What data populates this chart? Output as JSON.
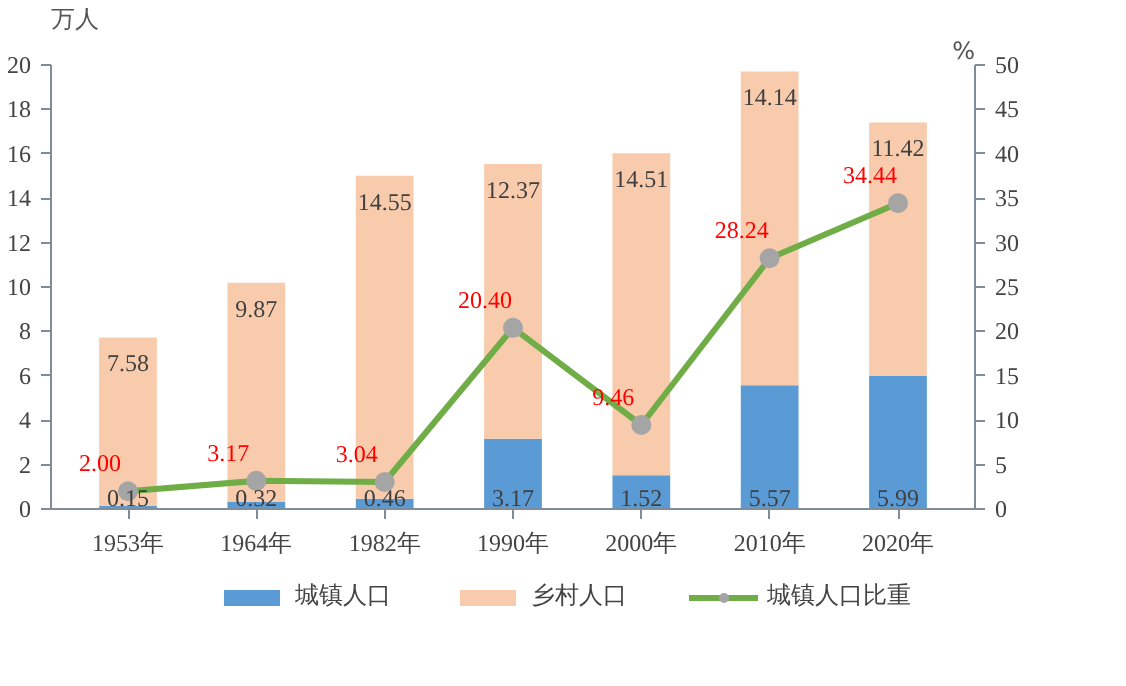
{
  "chart_data": {
    "type": "bar",
    "stacked": true,
    "ylabel": "万人",
    "y2label": "%",
    "categories": [
      "1953年",
      "1964年",
      "1982年",
      "1990年",
      "2000年",
      "2010年",
      "2020年"
    ],
    "series": [
      {
        "name": "城镇人口",
        "color": "#5b9bd5",
        "values": [
          0.15,
          0.32,
          0.46,
          3.17,
          1.52,
          5.57,
          5.99
        ]
      },
      {
        "name": "乡村人口",
        "color": "#f8cbad",
        "values": [
          7.58,
          9.87,
          14.55,
          12.37,
          14.51,
          14.14,
          11.42
        ]
      },
      {
        "name": "城镇人口比重",
        "type": "line",
        "axis": "y2",
        "color": "#70ad47",
        "marker": "circle",
        "values": [
          2.0,
          3.17,
          3.04,
          20.4,
          9.46,
          28.24,
          34.44
        ],
        "value_labels": [
          "2.00",
          "3.17",
          "3.04",
          "20.40",
          "9.46",
          "28.24",
          "34.44"
        ]
      }
    ],
    "ylim": [
      0,
      20
    ],
    "yticks": [
      0,
      2,
      4,
      6,
      8,
      10,
      12,
      14,
      16,
      18,
      20
    ],
    "y2lim": [
      0,
      50
    ],
    "y2ticks": [
      0,
      5,
      10,
      15,
      20,
      25,
      30,
      35,
      40,
      45,
      50
    ],
    "data_labels": true,
    "grid": false,
    "legend": "bottom"
  }
}
